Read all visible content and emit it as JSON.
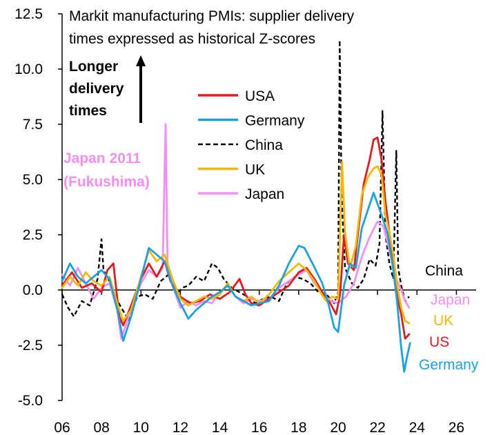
{
  "chart_data": {
    "type": "line",
    "title_lines": [
      "Markit manufacturing PMIs: supplier delivery",
      "times expressed as historical Z-scores"
    ],
    "xlabel": "",
    "ylabel": "",
    "xlim": [
      2006,
      2027
    ],
    "ylim": [
      -5.0,
      12.5
    ],
    "x_ticks": [
      2006,
      2008,
      2010,
      2012,
      2014,
      2016,
      2018,
      2020,
      2022,
      2024,
      2026
    ],
    "x_tick_labels": [
      "06",
      "08",
      "10",
      "12",
      "14",
      "16",
      "18",
      "20",
      "22",
      "24",
      "26"
    ],
    "y_ticks": [
      12.5,
      10.0,
      7.5,
      5.0,
      2.5,
      0.0,
      -2.5,
      -5.0
    ],
    "y_tick_labels": [
      "12.5",
      "10.0",
      "7.5",
      "5.0",
      "2.5",
      "0.0",
      "-2.5",
      "-5.0"
    ],
    "arrow_annotation_lines": [
      "Longer",
      "delivery",
      "times"
    ],
    "japan_annotation_lines": [
      "Japan 2011",
      "(Fukushima)"
    ],
    "colors": {
      "usa": "#e41a1c",
      "germany": "#1ba1e2",
      "china": "#000000",
      "uk": "#f5b800",
      "japan": "#f48ef2"
    },
    "legend": [
      {
        "name": "USA",
        "key": "usa",
        "dashed": false
      },
      {
        "name": "Germany",
        "key": "germany",
        "dashed": false
      },
      {
        "name": "China",
        "key": "china",
        "dashed": true
      },
      {
        "name": "UK",
        "key": "uk",
        "dashed": false
      },
      {
        "name": "Japan",
        "key": "japan",
        "dashed": false
      }
    ],
    "end_labels": [
      {
        "text": "China",
        "key": "china_label"
      },
      {
        "text": "Japan",
        "key": "japan"
      },
      {
        "text": "UK",
        "key": "uk"
      },
      {
        "text": "US",
        "key": "usa"
      },
      {
        "text": "Germany",
        "key": "germany"
      }
    ],
    "series": [
      {
        "name": "USA",
        "key": "usa",
        "dashed": false,
        "points": [
          [
            2006.0,
            0.2
          ],
          [
            2006.5,
            0.8
          ],
          [
            2007.0,
            0.1
          ],
          [
            2007.5,
            0.3
          ],
          [
            2008.0,
            -0.1
          ],
          [
            2008.3,
            0.9
          ],
          [
            2008.6,
            1.2
          ],
          [
            2008.9,
            -1.2
          ],
          [
            2009.1,
            -1.6
          ],
          [
            2009.5,
            -0.7
          ],
          [
            2010.0,
            0.5
          ],
          [
            2010.4,
            1.2
          ],
          [
            2010.8,
            0.6
          ],
          [
            2011.2,
            1.3
          ],
          [
            2011.5,
            0.4
          ],
          [
            2012.0,
            -0.3
          ],
          [
            2012.5,
            -0.6
          ],
          [
            2013.0,
            -0.5
          ],
          [
            2013.5,
            -0.2
          ],
          [
            2014.0,
            -0.4
          ],
          [
            2014.5,
            -0.1
          ],
          [
            2015.0,
            0.5
          ],
          [
            2015.3,
            -0.2
          ],
          [
            2015.6,
            -0.6
          ],
          [
            2016.0,
            -0.7
          ],
          [
            2016.5,
            -0.4
          ],
          [
            2017.0,
            -0.1
          ],
          [
            2017.5,
            0.2
          ],
          [
            2018.0,
            0.8
          ],
          [
            2018.4,
            1.0
          ],
          [
            2018.8,
            0.5
          ],
          [
            2019.2,
            -0.1
          ],
          [
            2019.6,
            -0.6
          ],
          [
            2019.9,
            -1.1
          ],
          [
            2020.1,
            -0.2
          ],
          [
            2020.3,
            2.5
          ],
          [
            2020.5,
            1.2
          ],
          [
            2020.8,
            0.9
          ],
          [
            2021.0,
            2.5
          ],
          [
            2021.3,
            4.8
          ],
          [
            2021.6,
            5.9
          ],
          [
            2021.8,
            6.8
          ],
          [
            2022.0,
            6.9
          ],
          [
            2022.2,
            5.9
          ],
          [
            2022.4,
            4.0
          ],
          [
            2022.6,
            2.6
          ],
          [
            2022.8,
            1.2
          ],
          [
            2023.0,
            -0.3
          ],
          [
            2023.2,
            -1.1
          ],
          [
            2023.4,
            -2.2
          ],
          [
            2023.6,
            -2.0
          ]
        ]
      },
      {
        "name": "Germany",
        "key": "germany",
        "dashed": false,
        "points": [
          [
            2006.0,
            0.4
          ],
          [
            2006.4,
            1.2
          ],
          [
            2006.8,
            0.6
          ],
          [
            2007.2,
            0.3
          ],
          [
            2007.6,
            0.6
          ],
          [
            2008.0,
            0.9
          ],
          [
            2008.4,
            0.5
          ],
          [
            2008.8,
            -0.9
          ],
          [
            2009.1,
            -2.3
          ],
          [
            2009.5,
            -1.2
          ],
          [
            2010.0,
            0.5
          ],
          [
            2010.4,
            1.9
          ],
          [
            2010.8,
            1.6
          ],
          [
            2011.2,
            1.3
          ],
          [
            2011.6,
            0.2
          ],
          [
            2012.0,
            -0.6
          ],
          [
            2012.4,
            -1.3
          ],
          [
            2012.8,
            -0.9
          ],
          [
            2013.2,
            -0.6
          ],
          [
            2013.6,
            -0.3
          ],
          [
            2014.0,
            -0.1
          ],
          [
            2014.4,
            0.2
          ],
          [
            2014.8,
            -0.3
          ],
          [
            2015.2,
            -0.5
          ],
          [
            2015.6,
            -0.7
          ],
          [
            2016.0,
            -0.6
          ],
          [
            2016.5,
            -0.5
          ],
          [
            2017.0,
            0.2
          ],
          [
            2017.5,
            1.2
          ],
          [
            2018.0,
            2.0
          ],
          [
            2018.3,
            1.9
          ],
          [
            2018.7,
            1.2
          ],
          [
            2019.2,
            0.3
          ],
          [
            2019.5,
            -0.6
          ],
          [
            2019.8,
            -1.7
          ],
          [
            2020.0,
            -1.9
          ],
          [
            2020.3,
            0.2
          ],
          [
            2020.6,
            1.2
          ],
          [
            2020.9,
            1.0
          ],
          [
            2021.2,
            2.8
          ],
          [
            2021.5,
            3.6
          ],
          [
            2021.8,
            4.4
          ],
          [
            2022.0,
            3.9
          ],
          [
            2022.2,
            3.4
          ],
          [
            2022.5,
            2.6
          ],
          [
            2022.8,
            0.9
          ],
          [
            2023.0,
            -0.6
          ],
          [
            2023.2,
            -2.6
          ],
          [
            2023.35,
            -3.7
          ],
          [
            2023.5,
            -3.0
          ],
          [
            2023.65,
            -2.4
          ]
        ]
      },
      {
        "name": "China",
        "key": "china",
        "dashed": true,
        "points": [
          [
            2006.0,
            -0.2
          ],
          [
            2006.3,
            -0.8
          ],
          [
            2006.6,
            -1.2
          ],
          [
            2007.0,
            -0.5
          ],
          [
            2007.4,
            -0.7
          ],
          [
            2007.8,
            0.5
          ],
          [
            2008.0,
            2.3
          ],
          [
            2008.1,
            0.9
          ],
          [
            2008.4,
            0.4
          ],
          [
            2008.7,
            -0.3
          ],
          [
            2009.0,
            -0.8
          ],
          [
            2009.4,
            -1.4
          ],
          [
            2009.8,
            -0.3
          ],
          [
            2010.2,
            -0.2
          ],
          [
            2010.6,
            -0.4
          ],
          [
            2011.0,
            0.4
          ],
          [
            2011.4,
            0.7
          ],
          [
            2011.8,
            -0.2
          ],
          [
            2012.1,
            0.1
          ],
          [
            2012.4,
            0.2
          ],
          [
            2012.8,
            0.6
          ],
          [
            2013.2,
            0.4
          ],
          [
            2013.6,
            1.2
          ],
          [
            2013.9,
            1.0
          ],
          [
            2014.2,
            0.5
          ],
          [
            2014.6,
            0.1
          ],
          [
            2015.0,
            -0.1
          ],
          [
            2015.4,
            -0.3
          ],
          [
            2015.8,
            -0.6
          ],
          [
            2016.2,
            -0.4
          ],
          [
            2016.6,
            -0.3
          ],
          [
            2017.0,
            -0.5
          ],
          [
            2017.4,
            0.3
          ],
          [
            2017.8,
            0.6
          ],
          [
            2018.2,
            0.5
          ],
          [
            2018.6,
            0.3
          ],
          [
            2019.0,
            -0.1
          ],
          [
            2019.4,
            -0.2
          ],
          [
            2019.8,
            -0.6
          ],
          [
            2020.0,
            -0.1
          ],
          [
            2020.08,
            11.3
          ],
          [
            2020.18,
            4.2
          ],
          [
            2020.35,
            1.0
          ],
          [
            2020.7,
            0.3
          ],
          [
            2021.0,
            0.1
          ],
          [
            2021.3,
            0.5
          ],
          [
            2021.6,
            1.4
          ],
          [
            2021.9,
            1.1
          ],
          [
            2022.1,
            2.1
          ],
          [
            2022.25,
            8.1
          ],
          [
            2022.4,
            2.5
          ],
          [
            2022.6,
            1.2
          ],
          [
            2022.8,
            0.5
          ],
          [
            2022.95,
            6.3
          ],
          [
            2023.05,
            1.0
          ],
          [
            2023.2,
            0.2
          ],
          [
            2023.4,
            -0.5
          ],
          [
            2023.6,
            -0.3
          ]
        ]
      },
      {
        "name": "UK",
        "key": "uk",
        "dashed": false,
        "points": [
          [
            2006.0,
            0.1
          ],
          [
            2006.4,
            0.6
          ],
          [
            2006.8,
            0.2
          ],
          [
            2007.2,
            0.8
          ],
          [
            2007.6,
            0.4
          ],
          [
            2008.0,
            0.2
          ],
          [
            2008.4,
            0.6
          ],
          [
            2008.8,
            -0.6
          ],
          [
            2009.1,
            -1.4
          ],
          [
            2009.5,
            -0.9
          ],
          [
            2010.0,
            0.6
          ],
          [
            2010.4,
            1.8
          ],
          [
            2010.8,
            1.3
          ],
          [
            2011.2,
            1.6
          ],
          [
            2011.6,
            0.5
          ],
          [
            2012.0,
            -0.4
          ],
          [
            2012.4,
            -0.7
          ],
          [
            2012.8,
            -0.5
          ],
          [
            2013.2,
            -0.3
          ],
          [
            2013.6,
            -0.4
          ],
          [
            2014.0,
            -0.2
          ],
          [
            2014.4,
            0.3
          ],
          [
            2014.8,
            -0.3
          ],
          [
            2015.2,
            -0.5
          ],
          [
            2015.6,
            -0.3
          ],
          [
            2016.0,
            -0.6
          ],
          [
            2016.5,
            -0.2
          ],
          [
            2017.0,
            0.4
          ],
          [
            2017.5,
            0.8
          ],
          [
            2018.0,
            1.2
          ],
          [
            2018.4,
            0.9
          ],
          [
            2018.8,
            0.4
          ],
          [
            2019.1,
            -0.1
          ],
          [
            2019.4,
            -0.5
          ],
          [
            2019.7,
            -0.3
          ],
          [
            2020.0,
            -0.4
          ],
          [
            2020.2,
            5.8
          ],
          [
            2020.35,
            2.6
          ],
          [
            2020.6,
            1.0
          ],
          [
            2020.9,
            2.0
          ],
          [
            2021.2,
            4.3
          ],
          [
            2021.5,
            5.1
          ],
          [
            2021.8,
            5.5
          ],
          [
            2022.0,
            5.6
          ],
          [
            2022.2,
            5.2
          ],
          [
            2022.4,
            3.4
          ],
          [
            2022.6,
            2.6
          ],
          [
            2022.8,
            1.6
          ],
          [
            2023.0,
            0.2
          ],
          [
            2023.2,
            -0.8
          ],
          [
            2023.4,
            -1.4
          ],
          [
            2023.6,
            -1.5
          ]
        ]
      },
      {
        "name": "Japan",
        "key": "japan",
        "dashed": false,
        "points": [
          [
            2006.0,
            0.7
          ],
          [
            2006.4,
            0.2
          ],
          [
            2006.8,
            1.0
          ],
          [
            2007.2,
            0.3
          ],
          [
            2007.6,
            -0.4
          ],
          [
            2008.0,
            0.1
          ],
          [
            2008.4,
            0.3
          ],
          [
            2008.8,
            -0.9
          ],
          [
            2009.0,
            -2.2
          ],
          [
            2009.3,
            -1.4
          ],
          [
            2009.7,
            -0.4
          ],
          [
            2010.0,
            0.3
          ],
          [
            2010.4,
            0.9
          ],
          [
            2010.8,
            0.6
          ],
          [
            2011.1,
            1.0
          ],
          [
            2011.25,
            7.5
          ],
          [
            2011.35,
            1.0
          ],
          [
            2011.6,
            0.2
          ],
          [
            2012.0,
            -0.8
          ],
          [
            2012.4,
            -0.5
          ],
          [
            2012.8,
            -0.7
          ],
          [
            2013.2,
            -0.5
          ],
          [
            2013.6,
            -0.6
          ],
          [
            2014.0,
            -0.1
          ],
          [
            2014.4,
            0.2
          ],
          [
            2014.8,
            -0.3
          ],
          [
            2015.2,
            -0.6
          ],
          [
            2015.6,
            -0.4
          ],
          [
            2016.0,
            -0.5
          ],
          [
            2016.5,
            -0.4
          ],
          [
            2017.0,
            0.1
          ],
          [
            2017.5,
            0.4
          ],
          [
            2018.0,
            0.7
          ],
          [
            2018.4,
            0.9
          ],
          [
            2018.8,
            0.3
          ],
          [
            2019.2,
            -0.1
          ],
          [
            2019.6,
            -0.5
          ],
          [
            2020.0,
            -0.6
          ],
          [
            2020.4,
            -0.3
          ],
          [
            2020.8,
            0.3
          ],
          [
            2021.2,
            1.5
          ],
          [
            2021.6,
            2.4
          ],
          [
            2022.0,
            3.1
          ],
          [
            2022.3,
            2.9
          ],
          [
            2022.6,
            1.8
          ],
          [
            2022.9,
            0.6
          ],
          [
            2023.2,
            0.0
          ],
          [
            2023.4,
            -0.5
          ],
          [
            2023.6,
            -0.8
          ]
        ]
      }
    ]
  }
}
